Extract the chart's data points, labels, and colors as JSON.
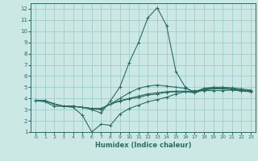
{
  "title": "",
  "xlabel": "Humidex (Indice chaleur)",
  "ylabel": "",
  "xlim": [
    -0.5,
    23.5
  ],
  "ylim": [
    1,
    12.5
  ],
  "yticks": [
    1,
    2,
    3,
    4,
    5,
    6,
    7,
    8,
    9,
    10,
    11,
    12
  ],
  "xticks": [
    0,
    1,
    2,
    3,
    4,
    5,
    6,
    7,
    8,
    9,
    10,
    11,
    12,
    13,
    14,
    15,
    16,
    17,
    18,
    19,
    20,
    21,
    22,
    23
  ],
  "background_color": "#cce8e4",
  "grid_color": "#9ececa",
  "line_color": "#2d6b65",
  "lines": [
    [
      3.8,
      3.7,
      3.3,
      3.3,
      3.2,
      2.5,
      1.0,
      1.7,
      1.6,
      2.6,
      3.1,
      3.4,
      3.7,
      3.9,
      4.1,
      4.4,
      4.6,
      4.7,
      4.7,
      4.7,
      4.7,
      4.75,
      4.65,
      4.6
    ],
    [
      3.8,
      3.8,
      3.5,
      3.3,
      3.3,
      3.2,
      3.0,
      2.7,
      3.8,
      5.0,
      7.2,
      9.0,
      11.2,
      12.1,
      10.5,
      6.4,
      5.0,
      4.5,
      4.9,
      4.9,
      4.9,
      4.85,
      4.75,
      4.65
    ],
    [
      3.8,
      3.8,
      3.5,
      3.3,
      3.3,
      3.2,
      3.1,
      3.0,
      3.5,
      4.0,
      4.5,
      4.9,
      5.1,
      5.2,
      5.1,
      5.0,
      4.9,
      4.6,
      4.9,
      5.0,
      5.0,
      4.95,
      4.85,
      4.75
    ],
    [
      3.8,
      3.8,
      3.5,
      3.3,
      3.3,
      3.2,
      3.1,
      3.1,
      3.5,
      3.8,
      4.0,
      4.2,
      4.4,
      4.5,
      4.6,
      4.65,
      4.65,
      4.55,
      4.8,
      4.9,
      4.9,
      4.85,
      4.75,
      4.65
    ],
    [
      3.8,
      3.8,
      3.5,
      3.3,
      3.3,
      3.2,
      3.1,
      3.1,
      3.5,
      3.75,
      3.95,
      4.1,
      4.3,
      4.4,
      4.55,
      4.6,
      4.6,
      4.5,
      4.75,
      4.85,
      4.85,
      4.8,
      4.7,
      4.6
    ]
  ]
}
